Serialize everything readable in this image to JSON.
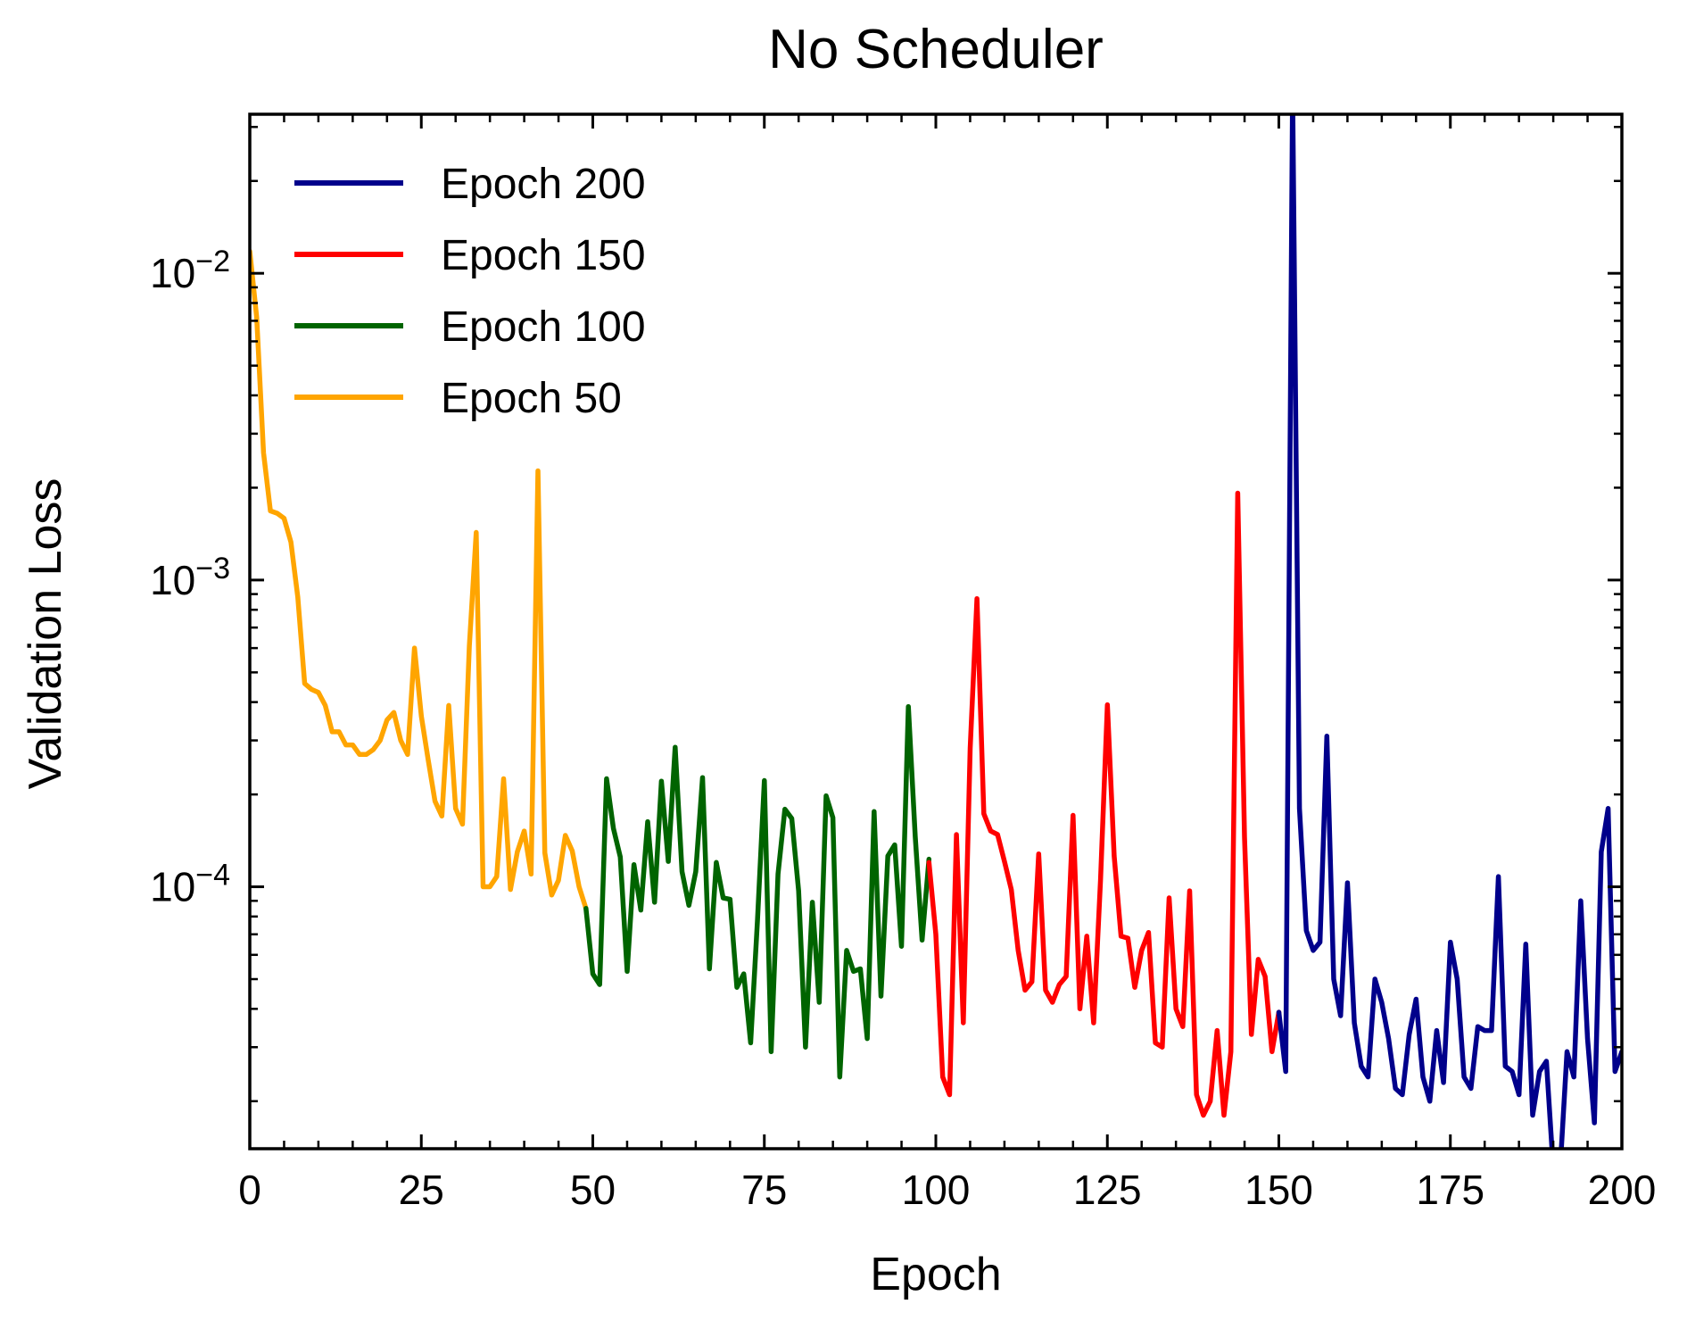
{
  "chart_data": {
    "type": "line",
    "title": "No Scheduler",
    "xlabel": "Epoch",
    "ylabel": "Validation Loss",
    "xlim": [
      0,
      200
    ],
    "ylim": [
      1.4e-05,
      0.033
    ],
    "yscale": "log",
    "x_ticks": [
      0,
      25,
      50,
      75,
      100,
      125,
      150,
      175,
      200
    ],
    "x_tick_labels": [
      "0",
      "25",
      "50",
      "75",
      "100",
      "125",
      "150",
      "175",
      "200"
    ],
    "y_ticks": [
      0.0001,
      0.001,
      0.01
    ],
    "y_tick_labels": [
      {
        "base": "10",
        "exp": "−4"
      },
      {
        "base": "10",
        "exp": "−3"
      },
      {
        "base": "10",
        "exp": "−2"
      }
    ],
    "grid": false,
    "legend_position": "top-left",
    "series": [
      {
        "name": "Epoch 200",
        "color": "#00008b",
        "x": [
          150,
          151,
          152,
          153,
          154,
          155,
          156,
          157,
          158,
          159,
          160,
          161,
          162,
          163,
          164,
          165,
          166,
          167,
          168,
          169,
          170,
          171,
          172,
          173,
          174,
          175,
          176,
          177,
          178,
          179,
          180,
          181,
          182,
          183,
          184,
          185,
          186,
          187,
          188,
          189,
          190,
          191,
          192,
          193,
          194,
          195,
          196,
          197,
          198,
          199,
          200
        ],
        "values": [
          3.9e-05,
          2.5e-05,
          0.04,
          0.00018,
          7.2e-05,
          6.2e-05,
          6.6e-05,
          0.00031,
          5e-05,
          3.8e-05,
          0.000103,
          3.6e-05,
          2.6e-05,
          2.4e-05,
          5e-05,
          4.2e-05,
          3.2e-05,
          2.2e-05,
          2.1e-05,
          3.3e-05,
          4.3e-05,
          2.4e-05,
          2e-05,
          3.4e-05,
          2.3e-05,
          6.6e-05,
          5e-05,
          2.4e-05,
          2.2e-05,
          3.5e-05,
          3.4e-05,
          3.4e-05,
          0.000108,
          2.6e-05,
          2.5e-05,
          2.1e-05,
          6.5e-05,
          1.8e-05,
          2.5e-05,
          2.7e-05,
          1.2e-05,
          1.2e-05,
          2.9e-05,
          2.4e-05,
          9e-05,
          3.2e-05,
          1.7e-05,
          0.00013,
          0.00018,
          2.5e-05,
          2.9e-05
        ]
      },
      {
        "name": "Epoch 150",
        "color": "#ff0000",
        "x": [
          99,
          100,
          101,
          102,
          103,
          104,
          105,
          106,
          107,
          108,
          109,
          110,
          111,
          112,
          113,
          114,
          115,
          116,
          117,
          118,
          119,
          120,
          121,
          122,
          123,
          124,
          125,
          126,
          127,
          128,
          129,
          130,
          131,
          132,
          133,
          134,
          135,
          136,
          137,
          138,
          139,
          140,
          141,
          142,
          143,
          144,
          145,
          146,
          147,
          148,
          149,
          150
        ],
        "values": [
          0.00012,
          7e-05,
          2.4e-05,
          2.1e-05,
          0.000148,
          3.6e-05,
          0.000283,
          0.00087,
          0.000173,
          0.000152,
          0.000148,
          0.000121,
          9.8e-05,
          6.2e-05,
          4.6e-05,
          4.9e-05,
          0.000128,
          4.6e-05,
          4.2e-05,
          4.8e-05,
          5.1e-05,
          0.000171,
          4e-05,
          6.9e-05,
          3.6e-05,
          0.000105,
          0.000392,
          0.000126,
          6.9e-05,
          6.8e-05,
          4.7e-05,
          6.2e-05,
          7.1e-05,
          3.1e-05,
          3e-05,
          9.2e-05,
          4e-05,
          3.5e-05,
          9.7e-05,
          2.1e-05,
          1.8e-05,
          2e-05,
          3.4e-05,
          1.8e-05,
          2.9e-05,
          0.00192,
          0.000145,
          3.3e-05,
          5.8e-05,
          5.1e-05,
          2.9e-05,
          3.9e-05
        ]
      },
      {
        "name": "Epoch 100",
        "color": "#006400",
        "x": [
          49,
          50,
          51,
          52,
          53,
          54,
          55,
          56,
          57,
          58,
          59,
          60,
          61,
          62,
          63,
          64,
          65,
          66,
          67,
          68,
          69,
          70,
          71,
          72,
          73,
          74,
          75,
          76,
          77,
          78,
          79,
          80,
          81,
          82,
          83,
          84,
          85,
          86,
          87,
          88,
          89,
          90,
          91,
          92,
          93,
          94,
          95,
          96,
          97,
          98,
          99
        ],
        "values": [
          8.5e-05,
          5.2e-05,
          4.8e-05,
          0.000225,
          0.000155,
          0.000125,
          5.3e-05,
          0.000118,
          8.4e-05,
          0.000163,
          8.9e-05,
          0.000221,
          0.000121,
          0.000285,
          0.000112,
          8.7e-05,
          0.000112,
          0.000227,
          5.4e-05,
          0.00012,
          9.2e-05,
          9.1e-05,
          4.7e-05,
          5.2e-05,
          3.1e-05,
          7.8e-05,
          0.000222,
          2.9e-05,
          0.00011,
          0.000179,
          0.000167,
          9.7e-05,
          3e-05,
          8.9e-05,
          4.2e-05,
          0.000198,
          0.000168,
          2.4e-05,
          6.2e-05,
          5.3e-05,
          5.4e-05,
          3.2e-05,
          0.000176,
          4.4e-05,
          0.000126,
          0.000137,
          6.4e-05,
          0.000387,
          0.000146,
          6.7e-05,
          0.000123
        ]
      },
      {
        "name": "Epoch 50",
        "color": "#ffa500",
        "x": [
          0,
          1,
          2,
          3,
          4,
          5,
          6,
          7,
          8,
          9,
          10,
          11,
          12,
          13,
          14,
          15,
          16,
          17,
          18,
          19,
          20,
          21,
          22,
          23,
          24,
          25,
          26,
          27,
          28,
          29,
          30,
          31,
          32,
          33,
          34,
          35,
          36,
          37,
          38,
          39,
          40,
          41,
          42,
          43,
          44,
          45,
          46,
          47,
          48,
          49
        ],
        "values": [
          0.0118,
          0.0072,
          0.0026,
          0.00168,
          0.00165,
          0.00159,
          0.00133,
          0.00088,
          0.00046,
          0.00044,
          0.00043,
          0.00039,
          0.00032,
          0.00032,
          0.00029,
          0.00029,
          0.00027,
          0.00027,
          0.00028,
          0.0003,
          0.00035,
          0.00037,
          0.0003,
          0.00027,
          0.0006,
          0.00036,
          0.00026,
          0.00019,
          0.00017,
          0.00039,
          0.00018,
          0.00016,
          0.00061,
          0.00143,
          0.0001,
          0.0001,
          0.000108,
          0.000225,
          9.8e-05,
          0.00013,
          0.000152,
          0.00011,
          0.00227,
          0.000129,
          9.4e-05,
          0.000105,
          0.000147,
          0.000131,
          0.0001,
          8.5e-05
        ]
      }
    ]
  }
}
